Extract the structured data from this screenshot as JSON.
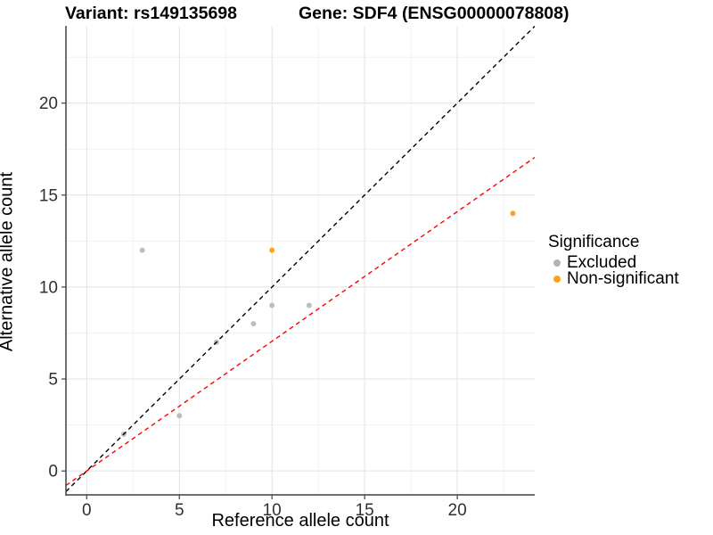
{
  "figure": {
    "title_left": "Variant: rs149135698",
    "title_right": "Gene: SDF4 (ENSG00000078808)"
  },
  "chart_data": {
    "type": "scatter",
    "title": "Variant: rs149135698   Gene: SDF4 (ENSG00000078808)",
    "xlabel": "Reference allele count",
    "ylabel": "Alternative allele count",
    "xlim": [
      -1.12,
      24.18
    ],
    "ylim": [
      -1.3,
      24.2
    ],
    "x_ticks": [
      0,
      5,
      10,
      15,
      20
    ],
    "y_ticks": [
      0,
      5,
      10,
      15,
      20
    ],
    "x_minor_ticks": [
      2.5,
      7.5,
      12.5,
      17.5,
      22.5
    ],
    "y_minor_ticks": [
      2.5,
      7.5,
      12.5,
      17.5,
      22.5
    ],
    "grid": true,
    "series": [
      {
        "name": "Excluded",
        "color": "#bebebe",
        "points": [
          [
            2,
            2
          ],
          [
            5,
            3
          ],
          [
            7,
            7
          ],
          [
            9,
            8
          ],
          [
            10,
            9
          ],
          [
            12,
            9
          ],
          [
            3,
            12
          ]
        ]
      },
      {
        "name": "Non-significant",
        "color": "#ffa414",
        "points": [
          [
            10,
            12
          ],
          [
            23,
            14
          ]
        ]
      }
    ],
    "lines": [
      {
        "name": "identity-line",
        "slope": 1.0,
        "intercept": 0,
        "color": "#000000",
        "dash": "5,4"
      },
      {
        "name": "expected-ratio-line",
        "slope": 0.705,
        "intercept": 0,
        "color": "#ff0000",
        "dash": "5,4"
      }
    ],
    "legend": {
      "title": "Significance",
      "position": "right",
      "entries": [
        {
          "label": "Excluded",
          "color": "#b3b3b3"
        },
        {
          "label": "Non-significant",
          "color": "#ffa414"
        }
      ]
    },
    "style": {
      "major_grid_color": "#e3e3e3",
      "minor_grid_color": "#f1f1f1",
      "axis_line_color": "#404040",
      "tick_label_color": "#303030",
      "tick_label_size": 19
    }
  }
}
